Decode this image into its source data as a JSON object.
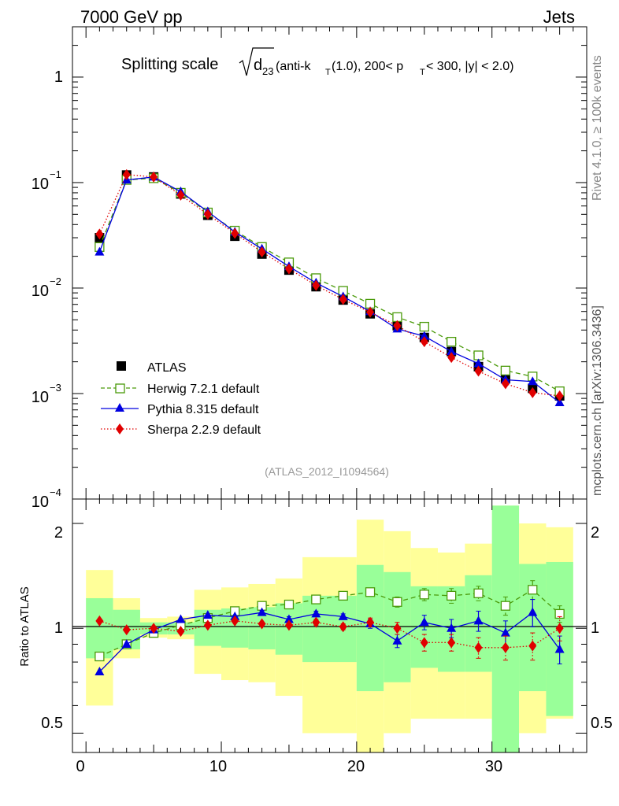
{
  "header": {
    "left": "7000 GeV pp",
    "right": "Jets"
  },
  "side_labels": {
    "rivet": "Rivet 4.1.0, ≥ 100k events",
    "mcplots": "mcplots.cern.ch [arXiv:1306.3436]"
  },
  "colors": {
    "atlas": "#000000",
    "herwig": "#4a9a0a",
    "pythia": "#0000e0",
    "sherpa": "#e00000",
    "band_yellow": "#ffff99",
    "band_green": "#99ff99"
  },
  "chart_data": [
    {
      "type": "scatter",
      "title": {
        "main": "Splitting scale",
        "sqrt_sym": "d",
        "sqrt_sub": "23",
        "paren1": " (anti-k",
        "k_sub": "T",
        "paren2": "(1.0), 200< p",
        "p_sub": "T",
        "paren3": " < 300, |y| < 2.0)"
      },
      "watermark": "(ATLAS_2012_I1094564)",
      "yscale": "log",
      "ylim": [
        0.0001,
        3
      ],
      "xlim": [
        -1,
        37
      ],
      "ytick_labels": {
        "m4": "10",
        "m3": "10",
        "m2": "10",
        "m1": "10",
        "zero": "1"
      },
      "ytick_exps": {
        "m4": "−4",
        "m3": "−3",
        "m2": "−2",
        "m1": "−1"
      },
      "x": [
        1,
        3,
        5,
        7,
        9,
        11,
        13,
        15,
        17,
        19,
        21,
        23,
        25,
        27,
        29,
        31,
        33,
        35
      ],
      "series": [
        {
          "name": "ATLAS",
          "legend": "ATLAS",
          "marker": "square-filled",
          "values": [
            0.03,
            0.118,
            0.113,
            0.078,
            0.049,
            0.031,
            0.021,
            0.0148,
            0.0103,
            0.0077,
            0.0057,
            0.0044,
            0.0034,
            0.0025,
            0.0018,
            0.00138,
            0.00112,
            0.00095
          ]
        },
        {
          "name": "Herwig",
          "legend": "Herwig 7.2.1 default",
          "marker": "square-open",
          "dash": "dashed",
          "values": [
            0.0245,
            0.106,
            0.11,
            0.08,
            0.052,
            0.035,
            0.0245,
            0.0175,
            0.0124,
            0.0094,
            0.0071,
            0.0053,
            0.0043,
            0.0031,
            0.0023,
            0.00165,
            0.00145,
            0.00105
          ]
        },
        {
          "name": "Pythia",
          "legend": "Pythia 8.315 default",
          "marker": "triangle",
          "dash": "solid",
          "values": [
            0.022,
            0.106,
            0.113,
            0.082,
            0.053,
            0.034,
            0.0235,
            0.016,
            0.0112,
            0.0083,
            0.006,
            0.0041,
            0.0035,
            0.0025,
            0.00192,
            0.00135,
            0.0013,
            0.00082
          ]
        },
        {
          "name": "Sherpa",
          "legend": "Sherpa 2.2.9 default",
          "marker": "diamond",
          "dash": "dotted",
          "values": [
            0.0325,
            0.119,
            0.113,
            0.076,
            0.05,
            0.033,
            0.022,
            0.0152,
            0.0106,
            0.0078,
            0.0059,
            0.0044,
            0.0031,
            0.0022,
            0.00163,
            0.00124,
            0.00102,
            0.00095
          ]
        }
      ]
    },
    {
      "type": "line",
      "ylabel": "Ratio to ATLAS",
      "yscale": "log",
      "ylim": [
        0.44,
        2.35
      ],
      "xlim": [
        -1,
        37
      ],
      "ytick_labels": {
        "t05": "0.5",
        "t1": "1",
        "t2": "2"
      },
      "xtick_labels": [
        "0",
        "10",
        "20",
        "30"
      ],
      "x": [
        1,
        3,
        5,
        7,
        9,
        11,
        13,
        15,
        17,
        19,
        21,
        23,
        25,
        27,
        29,
        31,
        33,
        35
      ],
      "bins": [
        [
          0,
          2
        ],
        [
          2,
          4
        ],
        [
          4,
          6
        ],
        [
          6,
          8
        ],
        [
          8,
          10
        ],
        [
          10,
          12
        ],
        [
          12,
          14
        ],
        [
          14,
          16
        ],
        [
          16,
          18
        ],
        [
          18,
          20
        ],
        [
          20,
          22
        ],
        [
          22,
          24
        ],
        [
          24,
          26
        ],
        [
          26,
          28
        ],
        [
          28,
          30
        ],
        [
          30,
          32
        ],
        [
          32,
          34
        ],
        [
          34,
          36
        ]
      ],
      "band_yellow": [
        [
          0.6,
          1.47
        ],
        [
          0.82,
          1.22
        ],
        [
          0.94,
          1.07
        ],
        [
          0.93,
          1.08
        ],
        [
          0.74,
          1.29
        ],
        [
          0.71,
          1.31
        ],
        [
          0.7,
          1.34
        ],
        [
          0.64,
          1.39
        ],
        [
          0.5,
          1.6
        ],
        [
          0.5,
          1.6
        ],
        [
          0.35,
          2.05
        ],
        [
          0.5,
          1.9
        ],
        [
          0.55,
          1.7
        ],
        [
          0.55,
          1.65
        ],
        [
          0.55,
          1.75
        ],
        [
          0.5,
          2.25
        ],
        [
          0.5,
          2.0
        ],
        [
          0.55,
          1.95
        ]
      ],
      "band_green": [
        [
          0.82,
          1.22
        ],
        [
          0.87,
          1.13
        ],
        [
          0.96,
          1.04
        ],
        [
          0.96,
          1.04
        ],
        [
          0.89,
          1.13
        ],
        [
          0.88,
          1.14
        ],
        [
          0.87,
          1.15
        ],
        [
          0.84,
          1.18
        ],
        [
          0.8,
          1.24
        ],
        [
          0.8,
          1.24
        ],
        [
          0.66,
          1.52
        ],
        [
          0.7,
          1.45
        ],
        [
          0.77,
          1.32
        ],
        [
          0.75,
          1.32
        ],
        [
          0.75,
          1.42
        ],
        [
          0.42,
          2.25
        ],
        [
          0.66,
          1.53
        ],
        [
          0.56,
          1.55
        ]
      ],
      "series": [
        {
          "name": "Herwig",
          "values": [
            0.83,
            0.9,
            0.97,
            1.02,
            1.07,
            1.12,
            1.16,
            1.17,
            1.21,
            1.24,
            1.27,
            1.19,
            1.25,
            1.24,
            1.26,
            1.16,
            1.29,
            1.1
          ]
        },
        {
          "name": "Pythia",
          "values": [
            0.75,
            0.9,
            0.99,
            1.06,
            1.09,
            1.08,
            1.11,
            1.06,
            1.1,
            1.08,
            1.03,
            0.92,
            1.04,
            1.0,
            1.05,
            0.97,
            1.11,
            0.87
          ]
        },
        {
          "name": "Sherpa",
          "values": [
            1.05,
            0.99,
            1.0,
            0.98,
            1.02,
            1.05,
            1.03,
            1.02,
            1.04,
            1.01,
            1.04,
            1.0,
            0.91,
            0.91,
            0.88,
            0.88,
            0.89,
            1.0
          ]
        }
      ],
      "errors": {
        "Herwig": [
          0.01,
          0.01,
          0.01,
          0.01,
          0.01,
          0.01,
          0.015,
          0.02,
          0.02,
          0.02,
          0.03,
          0.04,
          0.05,
          0.06,
          0.06,
          0.07,
          0.08,
          0.06
        ],
        "Pythia": [
          0.01,
          0.01,
          0.01,
          0.01,
          0.01,
          0.01,
          0.015,
          0.02,
          0.02,
          0.02,
          0.03,
          0.04,
          0.05,
          0.06,
          0.07,
          0.08,
          0.1,
          0.08
        ],
        "Sherpa": [
          0.01,
          0.01,
          0.01,
          0.01,
          0.01,
          0.01,
          0.01,
          0.015,
          0.02,
          0.02,
          0.03,
          0.04,
          0.05,
          0.05,
          0.06,
          0.07,
          0.08,
          0.08
        ]
      }
    }
  ]
}
